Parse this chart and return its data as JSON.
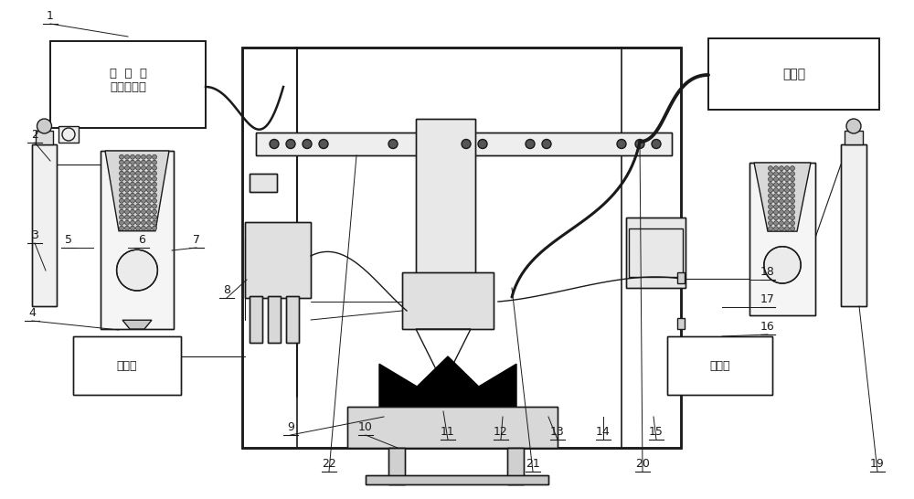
{
  "bg_color": "#ffffff",
  "line_color": "#1a1a1a",
  "lw": 1.0,
  "fig_width": 10.0,
  "fig_height": 5.46,
  "text_plasma": "等  离  子\n发生控制器",
  "text_laser": "激光器",
  "text_chiller": "水冷机"
}
